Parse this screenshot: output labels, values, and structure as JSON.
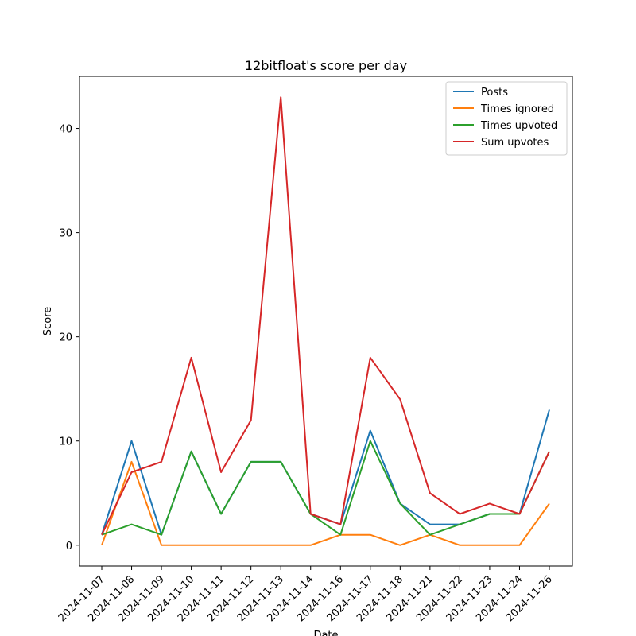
{
  "chart_data": {
    "type": "line",
    "title": "12bitfloat's score per day",
    "xlabel": "Date",
    "ylabel": "Score",
    "ylim": [
      -2,
      45
    ],
    "yticks": [
      0,
      10,
      20,
      30,
      40
    ],
    "categories": [
      "2024-11-07",
      "2024-11-08",
      "2024-11-09",
      "2024-11-10",
      "2024-11-11",
      "2024-11-12",
      "2024-11-13",
      "2024-11-14",
      "2024-11-16",
      "2024-11-17",
      "2024-11-18",
      "2024-11-21",
      "2024-11-22",
      "2024-11-23",
      "2024-11-24",
      "2024-11-26"
    ],
    "legend_position": "top-right",
    "grid": false,
    "series": [
      {
        "name": "Posts",
        "color": "#1f77b4",
        "values": [
          1,
          10,
          1,
          9,
          3,
          8,
          8,
          3,
          2,
          11,
          4,
          2,
          2,
          3,
          3,
          13
        ]
      },
      {
        "name": "Times ignored",
        "color": "#ff7f0e",
        "values": [
          0,
          8,
          0,
          0,
          0,
          0,
          0,
          0,
          1,
          1,
          0,
          1,
          0,
          0,
          0,
          4
        ]
      },
      {
        "name": "Times upvoted",
        "color": "#2ca02c",
        "values": [
          1,
          2,
          1,
          9,
          3,
          8,
          8,
          3,
          1,
          10,
          4,
          1,
          2,
          3,
          3,
          9
        ]
      },
      {
        "name": "Sum upvotes",
        "color": "#d62728",
        "values": [
          1,
          7,
          8,
          18,
          7,
          12,
          43,
          3,
          2,
          18,
          14,
          5,
          3,
          4,
          3,
          9
        ]
      }
    ]
  }
}
